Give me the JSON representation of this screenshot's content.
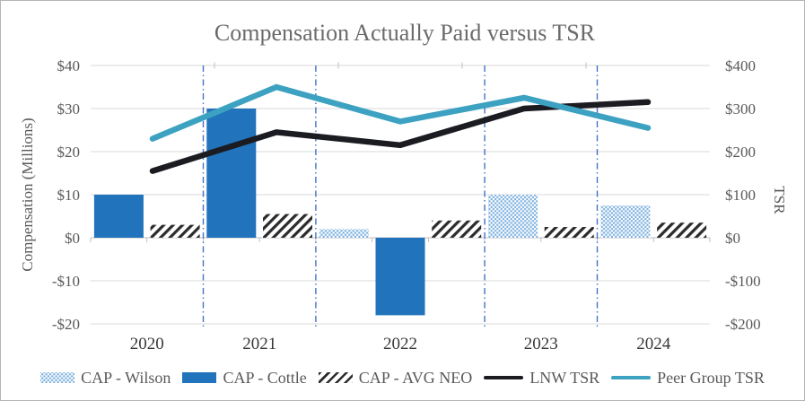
{
  "chart_data": {
    "type": "combo-bar-line",
    "title": "Compensation Actually Paid versus TSR",
    "categories": [
      "2020",
      "2021",
      "2022",
      "2023",
      "2024"
    ],
    "bar_series": [
      {
        "name": "CAP - Wilson",
        "pattern": "dotted",
        "color": "#79AEDE",
        "axis": "left",
        "values": [
          null,
          null,
          2,
          10,
          7.5
        ]
      },
      {
        "name": "CAP - Cottle",
        "pattern": "solid",
        "color": "#2173BB",
        "axis": "left",
        "values": [
          10,
          30,
          -18,
          null,
          null
        ]
      },
      {
        "name": "CAP - AVG NEO",
        "pattern": "hatched",
        "color": "#2B2B2B",
        "axis": "left",
        "values": [
          3,
          5.5,
          4,
          2.5,
          3.5
        ]
      }
    ],
    "line_series": [
      {
        "name": "LNW TSR",
        "color": "#1B1B22",
        "axis": "right",
        "values": [
          155,
          245,
          215,
          300,
          315
        ]
      },
      {
        "name": "Peer Group TSR",
        "color": "#3DA2C1",
        "axis": "right",
        "values": [
          230,
          350,
          270,
          325,
          255
        ]
      }
    ],
    "left_axis": {
      "title": "Compensation (Millions)",
      "max": 40,
      "min": -20,
      "step": 10,
      "tick_labels": [
        "$40",
        "$30",
        "$20",
        "$10",
        "$0",
        "-$10",
        "-$20"
      ]
    },
    "right_axis": {
      "title": "TSR",
      "max": 400,
      "min": -200,
      "step": 100,
      "tick_labels": [
        "$400",
        "$300",
        "$200",
        "$100",
        "$0",
        "-$100",
        "-$200"
      ]
    },
    "gridlines": true,
    "year_separator_lines": true,
    "legend_position": "bottom"
  },
  "styles": {
    "tick_text_color": "#595959",
    "x_label_color": "#383838",
    "title_color": "#6a6a6a",
    "grid_color": "#D9D9D9",
    "axis_line_color": "#BFBFBF",
    "separator_color": "#4472C4",
    "background": "#ffffff"
  }
}
